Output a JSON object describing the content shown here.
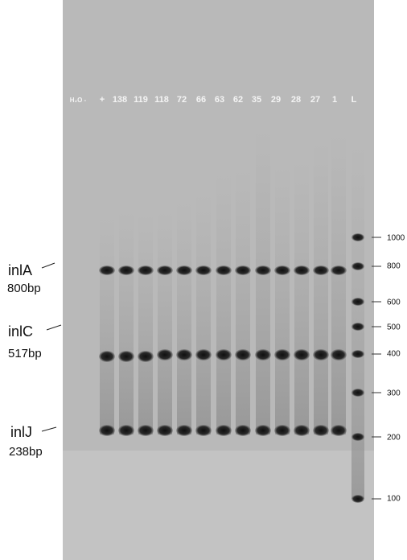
{
  "lanes": [
    "H₂O -",
    "+",
    "138",
    "119",
    "118",
    "72",
    "66",
    "63",
    "62",
    "35",
    "29",
    "28",
    "27",
    "1",
    "L"
  ],
  "ladder": [
    "1000",
    "800",
    "600",
    "500",
    "400",
    "300",
    "200",
    "100"
  ],
  "genes": [
    {
      "name": "inlA",
      "size": "800bp"
    },
    {
      "name": "inlC",
      "size": "517bp"
    },
    {
      "name": "inlJ",
      "size": "238bp"
    }
  ]
}
